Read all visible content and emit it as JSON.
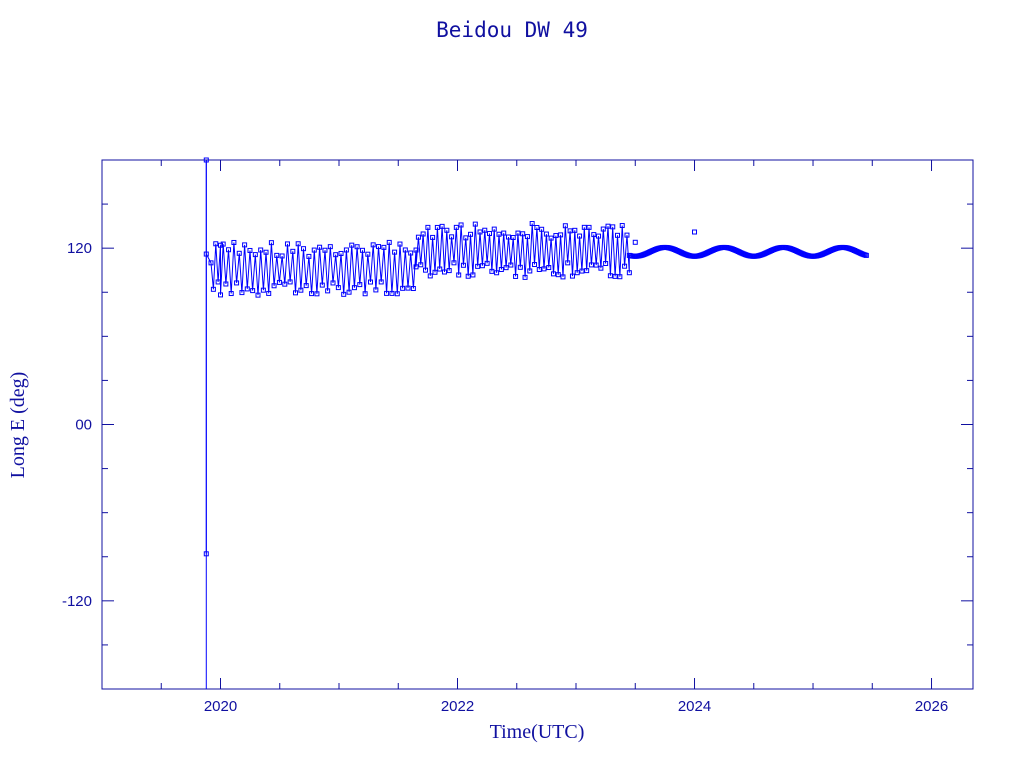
{
  "colors": {
    "frame": "#1010a0",
    "series": "#0000ff"
  },
  "chart_data": {
    "type": "scatter",
    "title": "Beidou DW 49",
    "xlabel": "Time(UTC)",
    "ylabel": "Long E (deg)",
    "xlim": [
      2019.0,
      2026.35
    ],
    "ylim": [
      -180,
      180
    ],
    "x_ticks": [
      {
        "value": 2020,
        "label": "2020"
      },
      {
        "value": 2022,
        "label": "2022"
      },
      {
        "value": 2024,
        "label": "2024"
      },
      {
        "value": 2026,
        "label": "2026"
      }
    ],
    "x_minor_step": 0.5,
    "y_ticks": [
      {
        "value": -120,
        "label": "-120"
      },
      {
        "value": 0,
        "label": "00"
      },
      {
        "value": 120,
        "label": "120"
      }
    ],
    "y_minor_step": 30,
    "grid": false,
    "marker": "square",
    "connected": true,
    "series": [
      {
        "segments": [
          {
            "description_range": "2019.88-2020.0 launch / drift",
            "points": [
              [
                2019.88,
                180
              ],
              [
                2019.88,
                -88
              ],
              [
                2019.88,
                116
              ],
              [
                2019.92,
                110
              ],
              [
                2019.94,
                92
              ],
              [
                2019.96,
                123
              ],
              [
                2019.98,
                97
              ],
              [
                2020.0,
                122
              ]
            ]
          },
          {
            "description_range": "2020.0-2021.65 oscillating station keeping",
            "x_start": 2020.0,
            "x_end": 2021.65,
            "y_low": 88,
            "y_high": 124,
            "period": 0.045
          },
          {
            "description_range": "2021.65-2023.45 oscillating station keeping",
            "x_start": 2021.65,
            "x_end": 2023.45,
            "y_low": 100,
            "y_high": 137,
            "period": 0.04
          },
          {
            "description_range": "2023.45-2025.45 smooth drift",
            "x_start": 2023.45,
            "x_end": 2025.45,
            "y_mid": 117.5,
            "amplitude": 3,
            "period": 0.5
          }
        ],
        "outliers": [
          [
            2024.0,
            131
          ],
          [
            2023.5,
            124
          ]
        ]
      }
    ]
  }
}
